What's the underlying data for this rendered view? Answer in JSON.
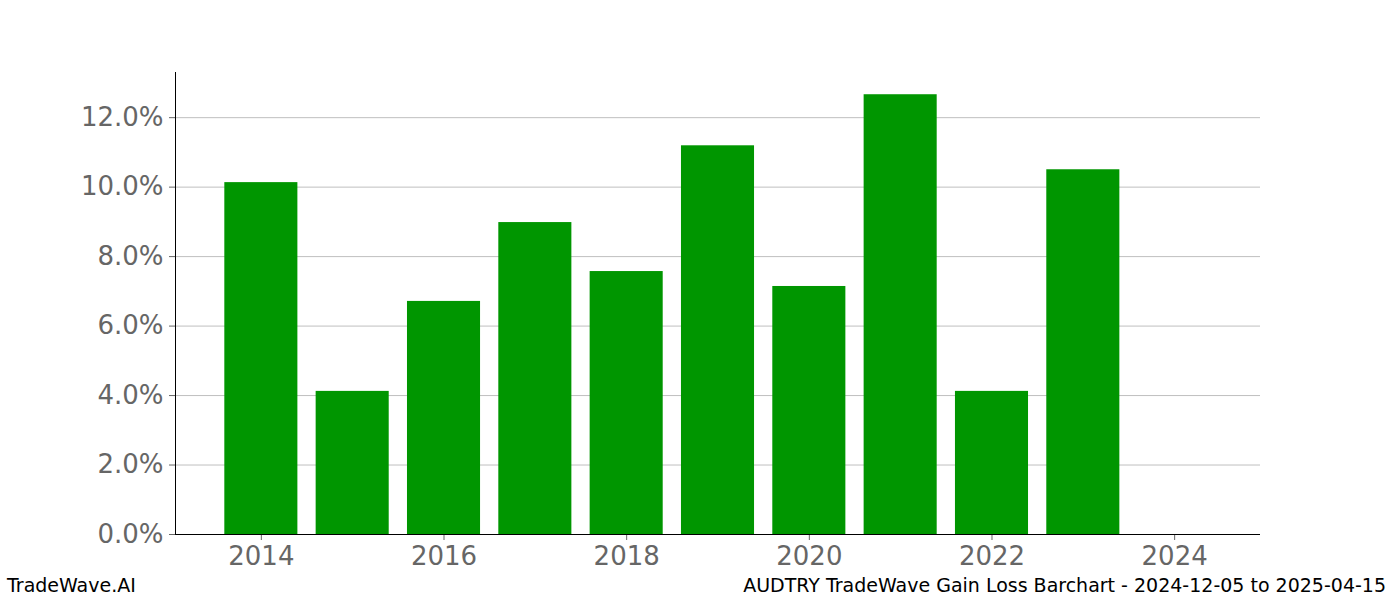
{
  "chart_data": {
    "type": "bar",
    "title": "AUDTRY TradeWave Gain Loss Barchart - 2024-12-05 to 2025-04-15",
    "credit": "TradeWave.AI",
    "x": [
      2014,
      2015,
      2016,
      2017,
      2018,
      2019,
      2020,
      2021,
      2022,
      2023,
      2024
    ],
    "values": [
      10.13,
      4.12,
      6.71,
      8.98,
      7.57,
      11.19,
      7.14,
      12.66,
      4.12,
      10.5,
      0
    ],
    "color": "#009600",
    "xlim": [
      2013.06,
      2024.94
    ],
    "xticks": [
      2014,
      2016,
      2018,
      2020,
      2022,
      2024
    ],
    "ylim": [
      0,
      13.3
    ],
    "yticks": [
      {
        "value": 0,
        "label": "0.0%"
      },
      {
        "value": 2,
        "label": "2.0%"
      },
      {
        "value": 4,
        "label": "4.0%"
      },
      {
        "value": 6,
        "label": "6.0%"
      },
      {
        "value": 8,
        "label": "8.0%"
      },
      {
        "value": 10,
        "label": "10.0%"
      },
      {
        "value": 12,
        "label": "12.0%"
      }
    ],
    "grid": true
  }
}
